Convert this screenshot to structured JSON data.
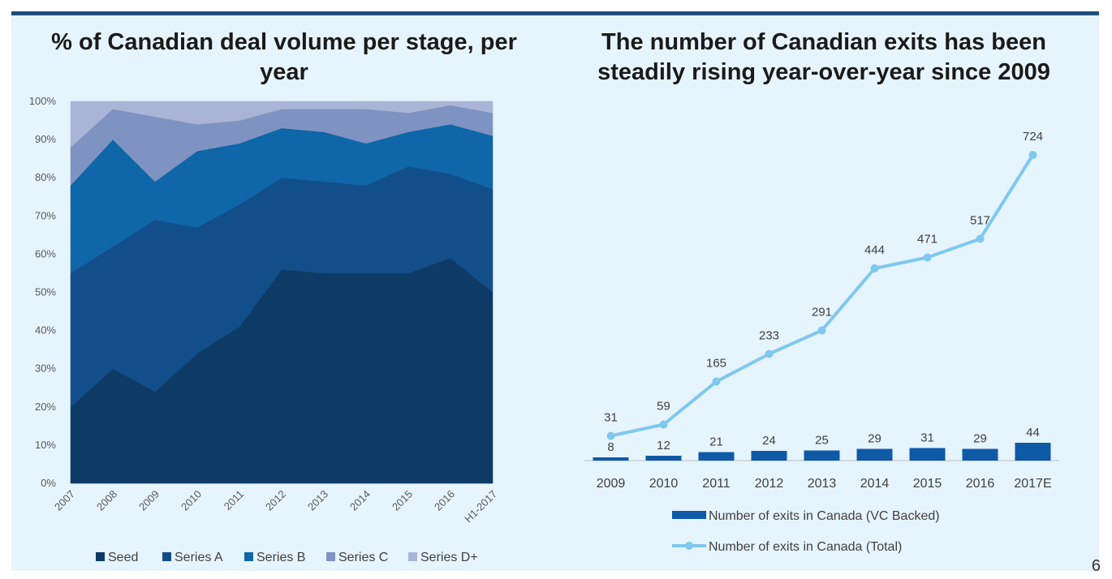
{
  "page_number": "6",
  "colors": {
    "seed": "#0d3b66",
    "series_a": "#124e8a",
    "series_b": "#0f66a8",
    "series_c": "#7f93c2",
    "series_d": "#aab4d6",
    "bar": "#0e5aa7",
    "line": "#7fc8ef",
    "background": "#e6f4fd",
    "header_bar": "#1f4e79"
  },
  "chart_data": [
    {
      "type": "area",
      "stacked": true,
      "title": "% of Canadian deal volume per stage, per year",
      "categories": [
        "2007",
        "2008",
        "2009",
        "2010",
        "2011",
        "2012",
        "2013",
        "2014",
        "2015",
        "2016",
        "H1-2017"
      ],
      "y_ticks": [
        "0%",
        "10%",
        "20%",
        "30%",
        "40%",
        "50%",
        "60%",
        "70%",
        "80%",
        "90%",
        "100%"
      ],
      "ylim": [
        0,
        100
      ],
      "legend_position": "bottom",
      "series": [
        {
          "name": "Seed",
          "values": [
            20,
            30,
            24,
            34,
            41,
            56,
            55,
            55,
            55,
            59,
            50
          ]
        },
        {
          "name": "Series A",
          "values": [
            35,
            32,
            45,
            33,
            32,
            24,
            24,
            23,
            28,
            22,
            27
          ]
        },
        {
          "name": "Series B",
          "values": [
            23,
            28,
            10,
            20,
            16,
            13,
            13,
            11,
            9,
            13,
            14
          ]
        },
        {
          "name": "Series C",
          "values": [
            10,
            8,
            17,
            7,
            6,
            5,
            6,
            9,
            5,
            5,
            6
          ]
        },
        {
          "name": "Series D+",
          "values": [
            12,
            2,
            4,
            6,
            5,
            2,
            2,
            2,
            3,
            1,
            3
          ]
        }
      ]
    },
    {
      "type": "bar+line",
      "title": "The number of Canadian exits has been steadily rising year-over-year since 2009",
      "categories": [
        "2009",
        "2010",
        "2011",
        "2012",
        "2013",
        "2014",
        "2015",
        "2016",
        "2017E"
      ],
      "legend_position": "bottom",
      "series": [
        {
          "name": "Number of exits in Canada (VC Backed)",
          "type": "bar",
          "values": [
            8,
            12,
            21,
            24,
            25,
            29,
            31,
            29,
            44
          ]
        },
        {
          "name": "Number of exits in Canada (Total)",
          "type": "line",
          "values": [
            31,
            59,
            165,
            233,
            291,
            444,
            471,
            517,
            724
          ]
        }
      ]
    }
  ]
}
